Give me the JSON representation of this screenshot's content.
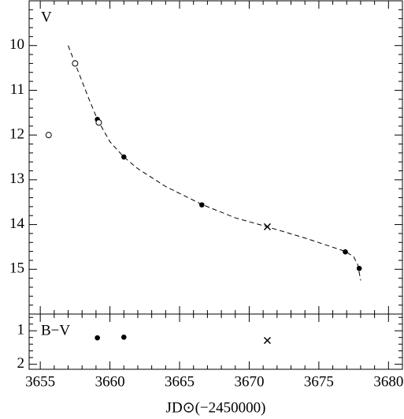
{
  "chart_data": [
    {
      "type": "scatter",
      "ylabel": "V",
      "xlim": [
        3654.2,
        3681
      ],
      "xticks": [
        3655,
        3660,
        3665,
        3670,
        3675,
        3680
      ],
      "x_minor_step": 1,
      "show_xtick_labels": false,
      "ylim": [
        16,
        9
      ],
      "yticks": [
        10,
        11,
        12,
        13,
        14,
        15
      ],
      "y_minor_step": 0.2,
      "series": [
        {
          "marker": "dashed-line",
          "x": [
            3657.0,
            3657.5,
            3658.5,
            3659.1,
            3660.0,
            3661.0,
            3662.0,
            3664.0,
            3666.6,
            3669.0,
            3671.3,
            3674.0,
            3676.9,
            3677.5,
            3677.8,
            3678.0
          ],
          "values": [
            10.0,
            10.4,
            11.2,
            11.65,
            12.15,
            12.49,
            12.75,
            13.15,
            13.55,
            13.85,
            14.05,
            14.3,
            14.6,
            14.72,
            14.9,
            15.25
          ]
        },
        {
          "marker": "filled",
          "x": [
            3659.1,
            3661.0,
            3666.6,
            3676.9,
            3677.9
          ],
          "values": [
            11.65,
            12.49,
            13.56,
            14.61,
            14.98
          ]
        },
        {
          "marker": "open",
          "x": [
            3655.6,
            3657.5,
            3659.2
          ],
          "values": [
            12.0,
            10.4,
            11.72
          ]
        },
        {
          "marker": "cross",
          "x": [
            3671.3
          ],
          "values": [
            14.05
          ]
        }
      ]
    },
    {
      "type": "scatter",
      "ylabel": "B−V",
      "xlabel": "JD⊙(−2450000)",
      "xlim": [
        3654.2,
        3681
      ],
      "xticks": [
        3655,
        3660,
        3665,
        3670,
        3675,
        3680
      ],
      "x_minor_step": 1,
      "show_xtick_labels": true,
      "ylim": [
        2.15,
        0.5
      ],
      "yticks": [
        1,
        2
      ],
      "y_minor_step": 0.2,
      "series": [
        {
          "marker": "filled",
          "x": [
            3659.1,
            3661.0
          ],
          "values": [
            1.21,
            1.19
          ]
        },
        {
          "marker": "cross",
          "x": [
            3671.3
          ],
          "values": [
            1.29
          ]
        }
      ]
    }
  ]
}
